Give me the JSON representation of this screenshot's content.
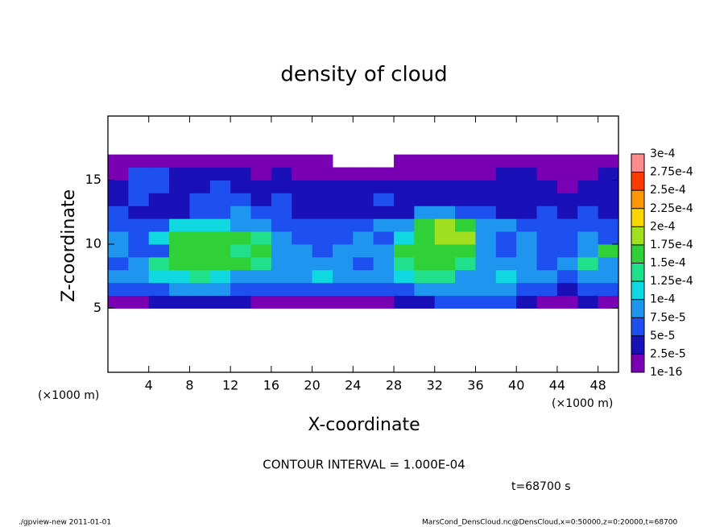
{
  "chart_data": {
    "type": "heatmap",
    "title": "density of cloud",
    "x_label": "X-coordinate",
    "y_label": "Z-coordinate",
    "x_unit": "(×1000 m)",
    "y_unit": "(×1000 m)",
    "annotation": "CONTOUR INTERVAL = 1.000E-04",
    "time_label": "t=68700 s",
    "footer_left": "./gpview-new   2011-01-01",
    "footer_right": "MarsCond_DensCloud.nc@DensCloud,x=0:50000,z=0:20000,t=68700",
    "xlim": [
      0,
      50
    ],
    "ylim": [
      0,
      20
    ],
    "xticks": [
      4,
      8,
      12,
      16,
      20,
      24,
      28,
      32,
      36,
      40,
      44,
      48
    ],
    "yticks": [
      5,
      10,
      15
    ],
    "x": [
      0,
      2,
      4,
      6,
      8,
      10,
      12,
      14,
      16,
      18,
      20,
      22,
      24,
      26,
      28,
      30,
      32,
      34,
      36,
      38,
      40,
      42,
      44,
      46,
      48,
      50
    ],
    "y": [
      5,
      6,
      7,
      8,
      9,
      10,
      11,
      12,
      13,
      14,
      15,
      16,
      17
    ],
    "values": [
      [
        1e-05,
        1e-05,
        3.5e-05,
        3.5e-05,
        3.5e-05,
        3.5e-05,
        3.5e-05,
        1e-05,
        1e-05,
        1e-05,
        1e-05,
        1e-05,
        1e-05,
        1e-05,
        3.5e-05,
        3.5e-05,
        6e-05,
        6e-05,
        6e-05,
        6e-05,
        3.5e-05,
        1e-05,
        1e-05,
        3.5e-05,
        1e-05
      ],
      [
        6e-05,
        6e-05,
        6e-05,
        8.5e-05,
        8.5e-05,
        8.5e-05,
        6e-05,
        6e-05,
        6e-05,
        6e-05,
        6e-05,
        6e-05,
        6e-05,
        6e-05,
        6e-05,
        8.5e-05,
        8.5e-05,
        8.5e-05,
        8.5e-05,
        8.5e-05,
        6e-05,
        6e-05,
        3.5e-05,
        6e-05,
        6e-05
      ],
      [
        8.5e-05,
        8.5e-05,
        0.00011,
        0.00011,
        0.000135,
        0.00011,
        8.5e-05,
        8.5e-05,
        8.5e-05,
        8.5e-05,
        0.00011,
        8.5e-05,
        8.5e-05,
        8.5e-05,
        0.00011,
        0.000135,
        0.000135,
        8.5e-05,
        8.5e-05,
        0.00011,
        8.5e-05,
        8.5e-05,
        6e-05,
        8.5e-05,
        8.5e-05
      ],
      [
        6e-05,
        8.5e-05,
        0.000135,
        0.00016,
        0.00016,
        0.00016,
        0.00016,
        0.000135,
        8.5e-05,
        8.5e-05,
        8.5e-05,
        8.5e-05,
        6e-05,
        8.5e-05,
        0.000135,
        0.00016,
        0.00016,
        0.000135,
        8.5e-05,
        8.5e-05,
        8.5e-05,
        6e-05,
        8.5e-05,
        0.000135,
        8.5e-05
      ],
      [
        8.5e-05,
        6e-05,
        6e-05,
        0.00016,
        0.00016,
        0.00016,
        0.000135,
        0.00016,
        8.5e-05,
        8.5e-05,
        6e-05,
        8.5e-05,
        8.5e-05,
        8.5e-05,
        0.00016,
        0.00016,
        0.00016,
        0.00016,
        8.5e-05,
        6e-05,
        8.5e-05,
        6e-05,
        6e-05,
        8.5e-05,
        0.00016
      ],
      [
        8.5e-05,
        6e-05,
        0.00011,
        0.00016,
        0.00016,
        0.00016,
        0.00016,
        0.000135,
        8.5e-05,
        6e-05,
        6e-05,
        6e-05,
        8.5e-05,
        6e-05,
        0.00011,
        0.00016,
        0.000185,
        0.000185,
        8.5e-05,
        6e-05,
        8.5e-05,
        6e-05,
        6e-05,
        8.5e-05,
        6e-05
      ],
      [
        6e-05,
        6e-05,
        6e-05,
        0.00011,
        0.00011,
        0.00011,
        8.5e-05,
        8.5e-05,
        6e-05,
        6e-05,
        6e-05,
        6e-05,
        6e-05,
        8.5e-05,
        8.5e-05,
        0.00016,
        0.000185,
        0.00016,
        8.5e-05,
        8.5e-05,
        6e-05,
        6e-05,
        6e-05,
        6e-05,
        6e-05
      ],
      [
        6e-05,
        3.5e-05,
        3.5e-05,
        3.5e-05,
        6e-05,
        6e-05,
        8.5e-05,
        6e-05,
        6e-05,
        3.5e-05,
        3.5e-05,
        3.5e-05,
        3.5e-05,
        3.5e-05,
        3.5e-05,
        8.5e-05,
        8.5e-05,
        6e-05,
        6e-05,
        3.5e-05,
        3.5e-05,
        6e-05,
        3.5e-05,
        6e-05,
        3.5e-05
      ],
      [
        3.5e-05,
        6e-05,
        3.5e-05,
        3.5e-05,
        6e-05,
        6e-05,
        6e-05,
        3.5e-05,
        6e-05,
        3.5e-05,
        3.5e-05,
        3.5e-05,
        3.5e-05,
        6e-05,
        3.5e-05,
        3.5e-05,
        3.5e-05,
        3.5e-05,
        3.5e-05,
        3.5e-05,
        3.5e-05,
        3.5e-05,
        3.5e-05,
        3.5e-05,
        3.5e-05
      ],
      [
        3.5e-05,
        6e-05,
        6e-05,
        3.5e-05,
        3.5e-05,
        6e-05,
        3.5e-05,
        3.5e-05,
        3.5e-05,
        3.5e-05,
        3.5e-05,
        3.5e-05,
        3.5e-05,
        3.5e-05,
        3.5e-05,
        3.5e-05,
        3.5e-05,
        3.5e-05,
        3.5e-05,
        3.5e-05,
        3.5e-05,
        3.5e-05,
        1e-05,
        3.5e-05,
        3.5e-05
      ],
      [
        1e-05,
        6e-05,
        6e-05,
        3.5e-05,
        3.5e-05,
        3.5e-05,
        3.5e-05,
        1e-05,
        3.5e-05,
        1e-05,
        1e-05,
        1e-05,
        1e-05,
        1e-05,
        1e-05,
        1e-05,
        1e-05,
        1e-05,
        1e-05,
        3.5e-05,
        3.5e-05,
        1e-05,
        1e-05,
        1e-05,
        3.5e-05
      ],
      [
        1e-05,
        1e-05,
        1e-05,
        1e-05,
        1e-05,
        1e-05,
        1e-05,
        1e-05,
        1e-05,
        1e-05,
        1e-05,
        null,
        null,
        null,
        1e-05,
        1e-05,
        1e-05,
        1e-05,
        1e-05,
        1e-05,
        1e-05,
        1e-05,
        1e-05,
        1e-05,
        1e-05
      ]
    ],
    "levels": [
      {
        "value": 1e-16,
        "label": "1e-16"
      },
      {
        "value": 2.5e-05,
        "label": "2.5e-5"
      },
      {
        "value": 5e-05,
        "label": "5e-5"
      },
      {
        "value": 7.5e-05,
        "label": "7.5e-5"
      },
      {
        "value": 0.0001,
        "label": "1e-4"
      },
      {
        "value": 0.000125,
        "label": "1.25e-4"
      },
      {
        "value": 0.00015,
        "label": "1.5e-4"
      },
      {
        "value": 0.000175,
        "label": "1.75e-4"
      },
      {
        "value": 0.0002,
        "label": "2e-4"
      },
      {
        "value": 0.000225,
        "label": "2.25e-4"
      },
      {
        "value": 0.00025,
        "label": "2.5e-4"
      },
      {
        "value": 0.000275,
        "label": "2.75e-4"
      },
      {
        "value": 0.0003,
        "label": "3e-4"
      }
    ],
    "colors": [
      "#7a00b4",
      "#1a10b8",
      "#1e50f0",
      "#1e96f0",
      "#10d8e0",
      "#20e08c",
      "#30d038",
      "#a0e020",
      "#f8d800",
      "#ff9800",
      "#ff3c00",
      "#ff8c8c"
    ]
  }
}
